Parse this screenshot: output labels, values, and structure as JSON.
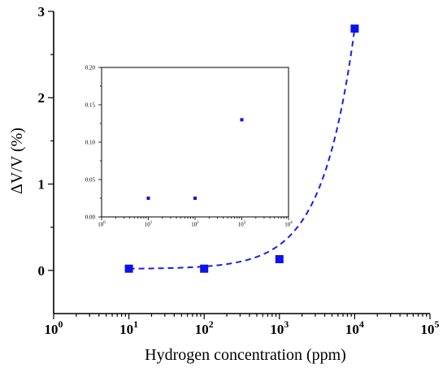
{
  "chart_data": [
    {
      "type": "scatter",
      "scale": "log-x",
      "xlabel": "Hydrogen concentration (ppm)",
      "ylabel": "ΔV/V (%)",
      "xlim": [
        1,
        100000
      ],
      "ylim": [
        -0.5,
        3
      ],
      "x_ticks": [
        {
          "value": 1,
          "base": "10",
          "exp": "0"
        },
        {
          "value": 10,
          "base": "10",
          "exp": "1"
        },
        {
          "value": 100,
          "base": "10",
          "exp": "2"
        },
        {
          "value": 1000,
          "base": "10",
          "exp": "3"
        },
        {
          "value": 10000,
          "base": "10",
          "exp": "4"
        },
        {
          "value": 100000,
          "base": "10",
          "exp": "5"
        }
      ],
      "y_ticks": [
        {
          "value": 0,
          "label": "0"
        },
        {
          "value": 1,
          "label": "1"
        },
        {
          "value": 2,
          "label": "2"
        },
        {
          "value": 3,
          "label": "3"
        }
      ],
      "series": [
        {
          "x": [
            10,
            100,
            1000,
            10000
          ],
          "y": [
            0.02,
            0.02,
            0.13,
            2.8
          ],
          "color": "#0b12ec",
          "marker": "square"
        }
      ],
      "fit_line": {
        "style": "dashed",
        "color": "#1a20e6",
        "x_range": [
          10,
          10000
        ]
      },
      "grid": false,
      "legend": "none"
    },
    {
      "type": "scatter",
      "role": "inset",
      "scale": "log-x",
      "xlim": [
        1,
        10000
      ],
      "ylim": [
        0,
        0.2
      ],
      "x_ticks": [
        {
          "value": 1,
          "base": "10",
          "exp": "0"
        },
        {
          "value": 10,
          "base": "10",
          "exp": "1"
        },
        {
          "value": 100,
          "base": "10",
          "exp": "2"
        },
        {
          "value": 1000,
          "base": "10",
          "exp": "3"
        },
        {
          "value": 10000,
          "base": "10",
          "exp": "4"
        }
      ],
      "y_ticks": [
        {
          "value": 0,
          "label": "0.00"
        },
        {
          "value": 0.05,
          "label": "0.05"
        },
        {
          "value": 0.1,
          "label": "0.10"
        },
        {
          "value": 0.15,
          "label": "0.15"
        },
        {
          "value": 0.2,
          "label": "0.20"
        }
      ],
      "series": [
        {
          "x": [
            10,
            100,
            1000
          ],
          "y": [
            0.025,
            0.025,
            0.13
          ],
          "color": "#0b12ec",
          "marker": "square"
        }
      ]
    }
  ]
}
